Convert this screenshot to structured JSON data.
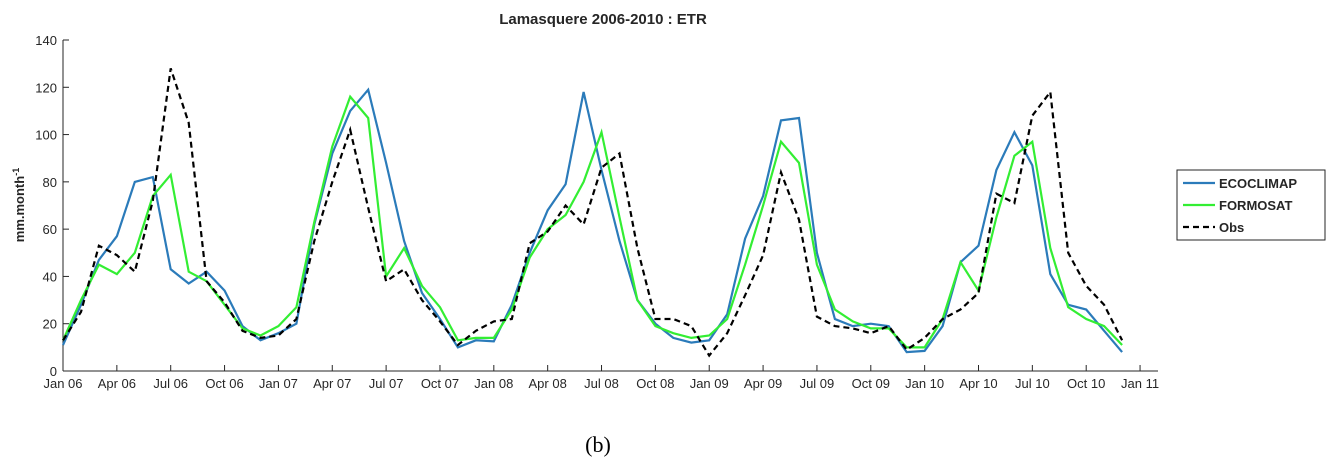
{
  "chart_data": {
    "type": "line",
    "title": "Lamasquere 2006-2010 : ETR",
    "ylabel": {
      "base": "mm.month",
      "sup": "-1"
    },
    "caption": "(b)",
    "x": [
      "2006-01",
      "2006-02",
      "2006-03",
      "2006-04",
      "2006-05",
      "2006-06",
      "2006-07",
      "2006-08",
      "2006-09",
      "2006-10",
      "2006-11",
      "2006-12",
      "2007-01",
      "2007-02",
      "2007-03",
      "2007-04",
      "2007-05",
      "2007-06",
      "2007-07",
      "2007-08",
      "2007-09",
      "2007-10",
      "2007-11",
      "2007-12",
      "2008-01",
      "2008-02",
      "2008-03",
      "2008-04",
      "2008-05",
      "2008-06",
      "2008-07",
      "2008-08",
      "2008-09",
      "2008-10",
      "2008-11",
      "2008-12",
      "2009-01",
      "2009-02",
      "2009-03",
      "2009-04",
      "2009-05",
      "2009-06",
      "2009-07",
      "2009-08",
      "2009-09",
      "2009-10",
      "2009-11",
      "2009-12",
      "2010-01",
      "2010-02",
      "2010-03",
      "2010-04",
      "2010-05",
      "2010-06",
      "2010-07",
      "2010-08",
      "2010-09",
      "2010-10",
      "2010-11",
      "2010-12"
    ],
    "xlim": [
      "2006-01",
      "2011-02"
    ],
    "xticks": [
      {
        "value": "2006-01",
        "label": "Jan 06"
      },
      {
        "value": "2006-04",
        "label": "Apr 06"
      },
      {
        "value": "2006-07",
        "label": "Jul 06"
      },
      {
        "value": "2006-10",
        "label": "Oct 06"
      },
      {
        "value": "2007-01",
        "label": "Jan 07"
      },
      {
        "value": "2007-04",
        "label": "Apr 07"
      },
      {
        "value": "2007-07",
        "label": "Jul 07"
      },
      {
        "value": "2007-10",
        "label": "Oct 07"
      },
      {
        "value": "2008-01",
        "label": "Jan 08"
      },
      {
        "value": "2008-04",
        "label": "Apr 08"
      },
      {
        "value": "2008-07",
        "label": "Jul 08"
      },
      {
        "value": "2008-10",
        "label": "Oct 08"
      },
      {
        "value": "2009-01",
        "label": "Jan 09"
      },
      {
        "value": "2009-04",
        "label": "Apr 09"
      },
      {
        "value": "2009-07",
        "label": "Jul 09"
      },
      {
        "value": "2009-10",
        "label": "Oct 09"
      },
      {
        "value": "2010-01",
        "label": "Jan 10"
      },
      {
        "value": "2010-04",
        "label": "Apr 10"
      },
      {
        "value": "2010-07",
        "label": "Jul 10"
      },
      {
        "value": "2010-10",
        "label": "Oct 10"
      },
      {
        "value": "2011-01",
        "label": "Jan 11"
      }
    ],
    "ylim": [
      0,
      140
    ],
    "yticks": [
      0,
      20,
      40,
      60,
      80,
      100,
      120,
      140
    ],
    "series": [
      {
        "name": "ECOCLIMAP",
        "color": "#2b7bba",
        "dash": false,
        "values": [
          11,
          28,
          47,
          57,
          80,
          82,
          43,
          37,
          42,
          34,
          19,
          13,
          16,
          20,
          62,
          92,
          110,
          119,
          88,
          55,
          33,
          22,
          10,
          13,
          12.5,
          28,
          50,
          68,
          79,
          118,
          85,
          55,
          30,
          20,
          14,
          12,
          13,
          24,
          56,
          74,
          106,
          107,
          50,
          22,
          19,
          20,
          19,
          8,
          8.5,
          19,
          46,
          53,
          85,
          101,
          87,
          41,
          28,
          26,
          17,
          8
        ]
      },
      {
        "name": "FORMOSAT",
        "color": "#33ee33",
        "dash": false,
        "values": [
          13,
          30,
          45,
          41,
          50,
          74,
          83,
          42,
          38,
          28,
          18,
          15,
          19,
          27,
          63,
          95,
          116,
          107,
          40,
          52,
          36,
          27,
          13,
          14,
          14,
          26,
          48,
          60,
          66,
          80,
          101,
          65,
          30,
          19,
          16,
          14,
          15,
          22,
          45,
          70,
          97,
          88,
          45,
          26,
          21,
          18,
          18,
          10,
          10,
          22,
          46,
          34,
          65,
          91,
          97,
          52,
          27,
          22,
          19,
          11
        ]
      },
      {
        "name": "Obs",
        "color": "#000000",
        "dash": true,
        "values": [
          13,
          25,
          53,
          49,
          42,
          72,
          128,
          105,
          38,
          29,
          17,
          14,
          15,
          22,
          55,
          80,
          102,
          69,
          38,
          43,
          30,
          21,
          11,
          17,
          21,
          22,
          54,
          59,
          70,
          62,
          86,
          92,
          52,
          22,
          22,
          19,
          6.5,
          16,
          32,
          49,
          84,
          64,
          23,
          19,
          18,
          16,
          19,
          9,
          14,
          22,
          26,
          33,
          75,
          71,
          108,
          118,
          50,
          36,
          28,
          13
        ]
      }
    ]
  }
}
